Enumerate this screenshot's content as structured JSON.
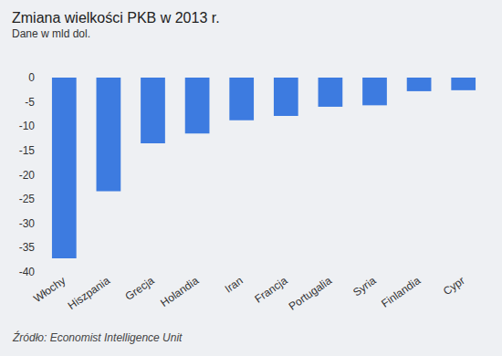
{
  "chart_data": {
    "type": "bar",
    "title": "Zmiana wielkości PKB w 2013 r.",
    "subtitle": "Dane w mld dol.",
    "categories": [
      "Włochy",
      "Hiszpania",
      "Grecja",
      "Holandia",
      "Iran",
      "Francja",
      "Portugalia",
      "Syria",
      "Finlandia",
      "Cypr"
    ],
    "values": [
      -37.2,
      -23.4,
      -13.5,
      -11.5,
      -8.8,
      -7.9,
      -6.0,
      -5.7,
      -2.8,
      -2.6
    ],
    "color": "#3d7be0",
    "ylim": [
      -40,
      0
    ],
    "yticks": [
      -40,
      -35,
      -30,
      -25,
      -20,
      -15,
      -10,
      -5,
      0
    ],
    "grid": false,
    "annotations": [
      "Źródło: Economist Intelligence Unit"
    ]
  }
}
